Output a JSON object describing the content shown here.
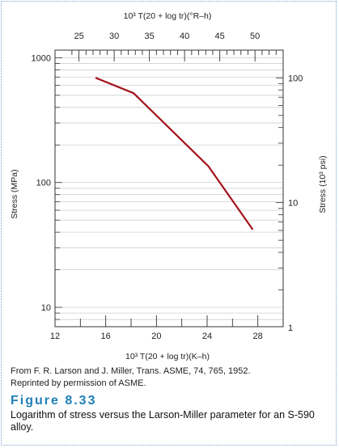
{
  "figure": {
    "number_label": "Figure 8.33",
    "caption": "Logarithm of stress versus the Larson-Miller parameter for an S-590 alloy.",
    "credit_line1": "From F. R. Larson and J. Miller, Trans. ASME, 74, 765, 1952.",
    "credit_line2": "Reprinted by permission of ASME."
  },
  "chart_data": {
    "type": "line",
    "x_bottom": {
      "label": "10³ T(20 + log tr)(K–h)",
      "range": [
        12,
        30
      ],
      "ticks": [
        12,
        16,
        20,
        24,
        28
      ]
    },
    "x_top": {
      "label": "10³ T(20 + log tr)(°R–h)",
      "ticks": [
        25,
        30,
        35,
        40,
        45,
        50
      ]
    },
    "y_left": {
      "label": "Stress (MPa)",
      "scale": "log",
      "range": [
        7,
        1150
      ],
      "ticks": [
        10,
        100,
        1000
      ]
    },
    "y_right": {
      "label": "Stress (10³ psi)",
      "scale": "log",
      "ticks": [
        1,
        10,
        100
      ]
    },
    "grid": true,
    "series": [
      {
        "color": "#a3141c",
        "x": [
          15.2,
          18.2,
          24.1,
          27.6
        ],
        "y": [
          690,
          520,
          135,
          42
        ]
      }
    ]
  }
}
